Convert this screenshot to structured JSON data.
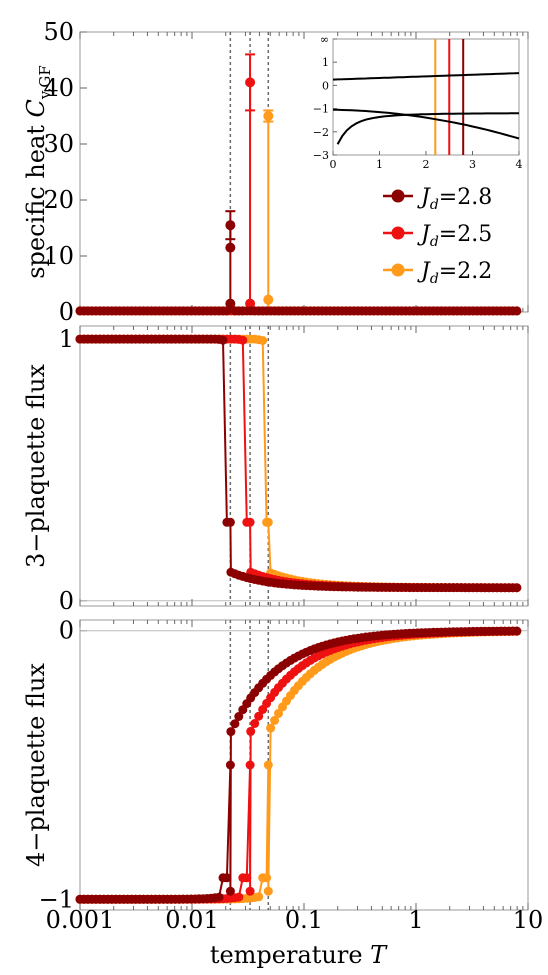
{
  "colors": {
    "dark": "#8b0000",
    "red": "#ee1111",
    "orange": "#ff9a1a",
    "frame": "#9a9a9a",
    "vline": "#6a6a6a"
  },
  "shared": {
    "xlabel": "temperature T",
    "xlabel_text": "temperature ",
    "xlabel_var": "T",
    "x_ticks": [
      "0.001",
      "0.01",
      "0.1",
      "1",
      "10"
    ],
    "transition_T": [
      0.022,
      0.033,
      0.048
    ]
  },
  "legend": [
    {
      "sym": "J",
      "sub": "d",
      "value": "=2.8",
      "color": "#8b0000"
    },
    {
      "sym": "J",
      "sub": "d",
      "value": "=2.5",
      "color": "#ee1111"
    },
    {
      "sym": "J",
      "sub": "d",
      "value": "=2.2",
      "color": "#ff9a1a"
    }
  ],
  "chart_data": [
    {
      "type": "scatter",
      "panel": "specific-heat",
      "ylabel": "specific heat C_v,GF",
      "ylabel_main": "specific heat ",
      "ylabel_var": "C",
      "ylabel_sub": "v,GF",
      "xscale": "log",
      "xlim": [
        0.001,
        10
      ],
      "ylim": [
        0,
        50
      ],
      "y_ticks": [
        "0",
        "10",
        "20",
        "30",
        "40",
        "50"
      ],
      "series": [
        {
          "name": "Jd=2.8",
          "peak_T": 0.022,
          "peak_values": [
            15.5,
            11.5,
            1.5
          ],
          "peak_error": 2.5,
          "baseline": 0.2
        },
        {
          "name": "Jd=2.5",
          "peak_T": 0.033,
          "peak_values": [
            41,
            1.5
          ],
          "peak_error": 5,
          "baseline": 0.2
        },
        {
          "name": "Jd=2.2",
          "peak_T": 0.048,
          "peak_values": [
            35,
            2.2
          ],
          "peak_error": 1,
          "baseline": 0.2
        }
      ],
      "inset": {
        "xlim": [
          0,
          4
        ],
        "ylim": [
          -3,
          2
        ],
        "x_ticks": [
          "0",
          "1",
          "2",
          "3",
          "4"
        ],
        "y_ticks": [
          "∞",
          "1",
          "0",
          "−1",
          "−2",
          "−3"
        ],
        "vlines": [
          {
            "x": 2.2,
            "color": "#ff9a1a"
          },
          {
            "x": 2.5,
            "color": "#ee1111"
          },
          {
            "x": 2.8,
            "color": "#8b0000"
          }
        ]
      }
    },
    {
      "type": "scatter",
      "panel": "3-plaquette-flux",
      "ylabel": "3−plaquette flux",
      "xscale": "log",
      "xlim": [
        0.001,
        10
      ],
      "ylim": [
        0,
        1
      ],
      "y_ticks": [
        "0",
        "1"
      ],
      "series": [
        {
          "name": "Jd=2.8",
          "low_value": 1.0,
          "high_value": 0.05,
          "transition_T": 0.022
        },
        {
          "name": "Jd=2.5",
          "low_value": 1.0,
          "high_value": 0.05,
          "transition_T": 0.033
        },
        {
          "name": "Jd=2.2",
          "low_value": 1.0,
          "high_value": 0.05,
          "transition_T": 0.048
        }
      ]
    },
    {
      "type": "scatter",
      "panel": "4-plaquette-flux",
      "ylabel": "4−plaquette flux",
      "xscale": "log",
      "xlim": [
        0.001,
        10
      ],
      "ylim": [
        -1,
        0
      ],
      "y_ticks": [
        "−1",
        "0"
      ],
      "series": [
        {
          "name": "Jd=2.8",
          "low_value": -1.0,
          "high_value": 0.0,
          "transition_T": 0.022
        },
        {
          "name": "Jd=2.5",
          "low_value": -1.0,
          "high_value": 0.0,
          "transition_T": 0.033
        },
        {
          "name": "Jd=2.2",
          "low_value": -1.0,
          "high_value": 0.0,
          "transition_T": 0.048
        }
      ]
    }
  ]
}
